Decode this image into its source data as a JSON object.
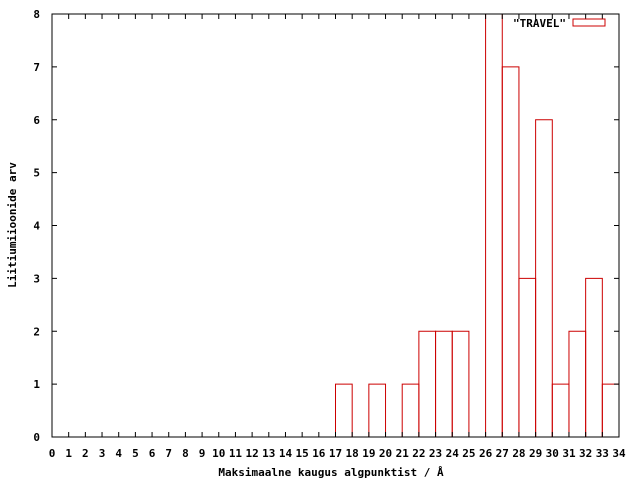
{
  "chart_data": {
    "type": "bar",
    "style": "histogram-steps",
    "xlabel": "Maksimaalne kaugus algpunktist / Å",
    "ylabel": "Liitiumiioonide arv",
    "xlim": [
      0,
      34
    ],
    "ylim": [
      0,
      8
    ],
    "x_ticks": [
      "0",
      "1",
      "2",
      "3",
      "4",
      "5",
      "6",
      "7",
      "8",
      "9",
      "10",
      "11",
      "12",
      "13",
      "14",
      "15",
      "16",
      "17",
      "18",
      "19",
      "20",
      "21",
      "22",
      "23",
      "24",
      "25",
      "26",
      "27",
      "28",
      "29",
      "30",
      "31",
      "32",
      "33",
      "34"
    ],
    "y_ticks": [
      "0",
      "1",
      "2",
      "3",
      "4",
      "5",
      "6",
      "7",
      "8"
    ],
    "grid": false,
    "legend_position": "top-right",
    "series": [
      {
        "name": "\"TRAVEL\"",
        "color": "#cc0000",
        "bins": [
          {
            "start": 17,
            "end": 18,
            "value": 1
          },
          {
            "start": 19,
            "end": 20,
            "value": 1
          },
          {
            "start": 21,
            "end": 22,
            "value": 1
          },
          {
            "start": 22,
            "end": 23,
            "value": 2
          },
          {
            "start": 23,
            "end": 24,
            "value": 2
          },
          {
            "start": 24,
            "end": 25,
            "value": 2
          },
          {
            "start": 26,
            "end": 27,
            "value": 8
          },
          {
            "start": 27,
            "end": 28,
            "value": 7
          },
          {
            "start": 28,
            "end": 29,
            "value": 3
          },
          {
            "start": 29,
            "end": 30,
            "value": 6
          },
          {
            "start": 30,
            "end": 31,
            "value": 1
          },
          {
            "start": 31,
            "end": 32,
            "value": 2
          },
          {
            "start": 32,
            "end": 33,
            "value": 3
          },
          {
            "start": 33,
            "end": 34,
            "value": 1
          }
        ]
      }
    ]
  }
}
